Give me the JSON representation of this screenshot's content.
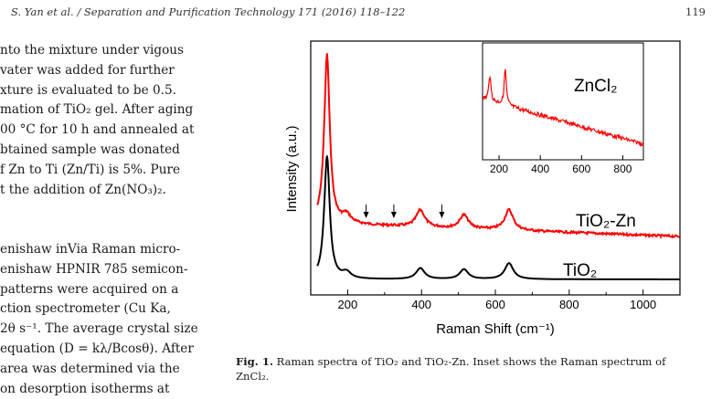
{
  "header": {
    "journal": "S. Yan et al. / Separation and Purification Technology 171 (2016) 118–122",
    "page_number": "119"
  },
  "body_text": {
    "para1": [
      "nto the mixture under vigous",
      "vater was added for further",
      "xture is evaluated to be 0.5.",
      "mation of TiO₂ gel. After aging",
      "00 °C for 10 h and annealed at",
      "btained sample was donated",
      "f Zn to Ti (Zn/Ti) is 5%. Pure",
      "t the addition of Zn(NO₃)₂."
    ],
    "para2": [
      "enishaw inVia Raman micro-",
      "enishaw HPNIR 785 semicon-",
      " patterns were acquired on a",
      "ction spectrometer (Cu Ka,",
      "2θ s⁻¹. The average crystal size",
      "equation (D = kλ/Bcosθ). After",
      " area was determined via the",
      "on desorption isotherms at"
    ]
  },
  "figure": {
    "caption_label": "Fig. 1.",
    "caption_text": " Raman spectra of TiO₂ and TiO₂-Zn. Inset shows the Raman spectrum of ZnCl₂.",
    "chart_data": {
      "type": "line",
      "xlabel": "Raman Shift (cm⁻¹)",
      "ylabel": "Intensity (a.u.)",
      "xlim": [
        100,
        1100
      ],
      "xticks": [
        200,
        400,
        600,
        800,
        1000
      ],
      "grid": false,
      "series": [
        {
          "name": "TiO₂",
          "color": "#000000",
          "peaks": [
            [
              144,
              1.0
            ],
            [
              197,
              0.05
            ],
            [
              397,
              0.09
            ],
            [
              515,
              0.08
            ],
            [
              637,
              0.13
            ]
          ],
          "baseline": 0.0
        },
        {
          "name": "TiO₂-Zn",
          "color": "#ff0000",
          "peaks": [
            [
              144,
              1.0
            ],
            [
              197,
              0.05
            ],
            [
              397,
              0.1
            ],
            [
              515,
              0.08
            ],
            [
              637,
              0.12
            ]
          ],
          "baseline": 0.0,
          "markers_x": [
            250,
            325,
            455
          ]
        }
      ],
      "inset": {
        "label": "ZnCl₂",
        "color": "#ff0000",
        "xlim": [
          120,
          900
        ],
        "xticks": [
          200,
          400,
          600,
          800
        ],
        "peaks": [
          [
            155,
            0.35
          ],
          [
            230,
            0.5
          ]
        ]
      }
    }
  }
}
